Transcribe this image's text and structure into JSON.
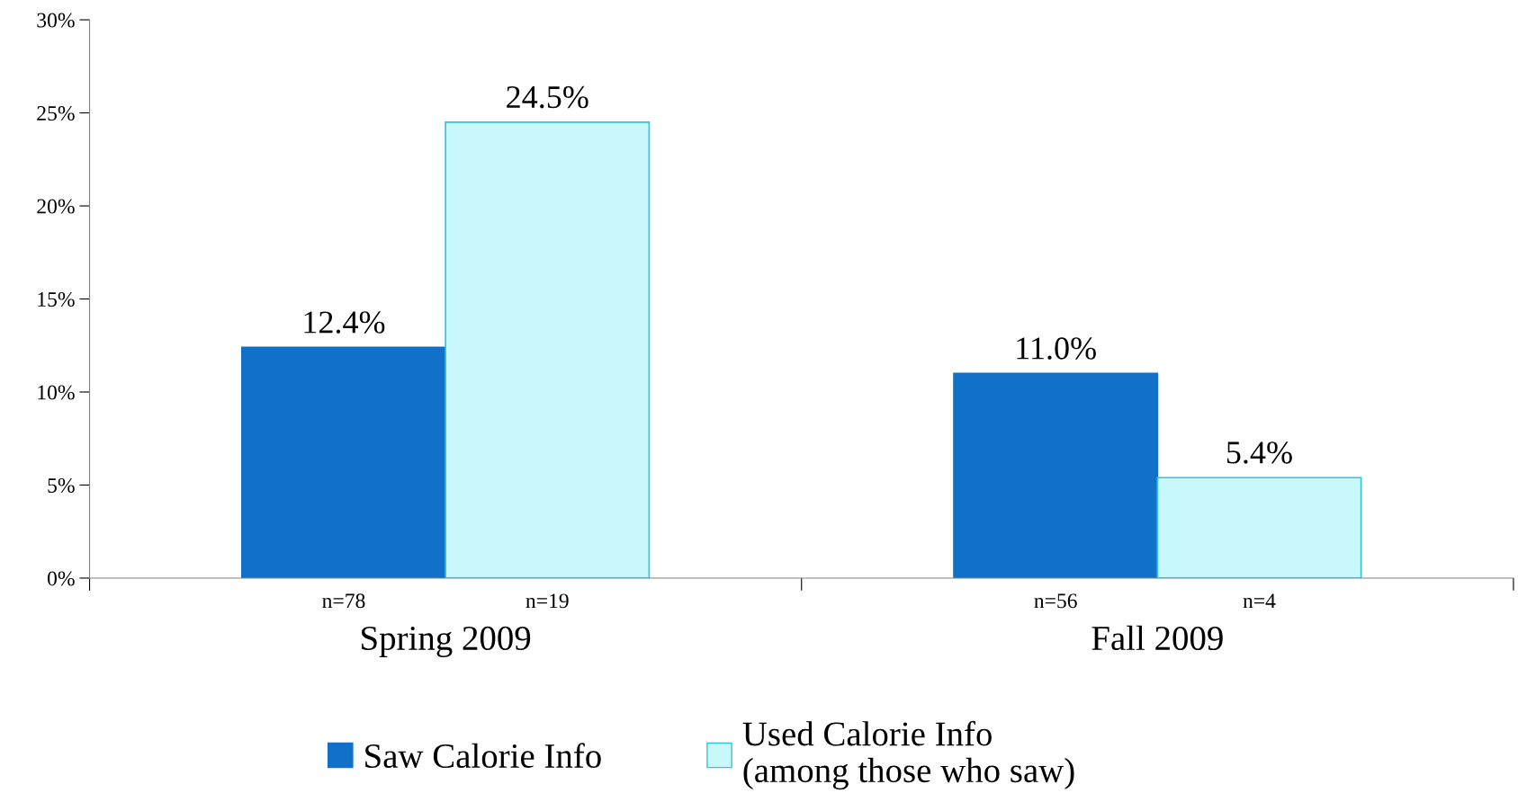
{
  "chart_data": {
    "type": "bar",
    "categories": [
      "Spring 2009",
      "Fall 2009"
    ],
    "series": [
      {
        "name": "Saw Calorie Info",
        "color": "#1170c8",
        "values": [
          12.4,
          11.0
        ],
        "value_labels": [
          "12.4%",
          "11.0%"
        ]
      },
      {
        "name": "Used Calorie Info\n(among those who saw)",
        "color": "#c8f8fa",
        "values": [
          24.5,
          5.4
        ],
        "value_labels": [
          "24.5%",
          "5.4%"
        ]
      }
    ],
    "annotations": [
      "n=78",
      "n=19",
      "n=56",
      "n=4"
    ],
    "ylim": [
      0,
      30
    ],
    "yticks": [
      {
        "value": 0,
        "label": "0%"
      },
      {
        "value": 5,
        "label": "5%"
      },
      {
        "value": 10,
        "label": "10%"
      },
      {
        "value": 15,
        "label": "15%"
      },
      {
        "value": 20,
        "label": "20%"
      },
      {
        "value": 25,
        "label": "25%"
      },
      {
        "value": 30,
        "label": "30%"
      }
    ],
    "grid": false,
    "legend": "bottom"
  }
}
